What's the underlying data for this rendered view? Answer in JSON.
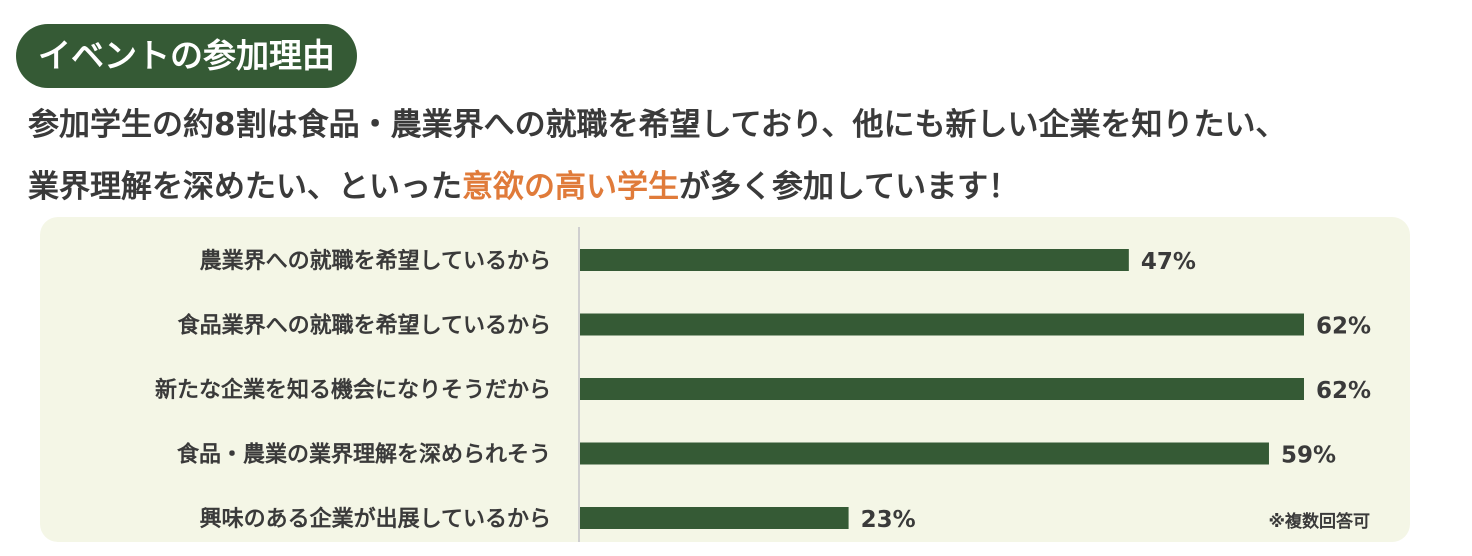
{
  "header": {
    "badge": "イベントの参加理由",
    "lead_line1": "参加学生の約8割は食品・農業界への就職を希望しており、他にも新しい企業を知りたい、",
    "lead_line2_pre": "業界理解を深めたい、といった",
    "lead_line2_highlight": "意欲の高い学生",
    "lead_line2_post": "が多く参加しています！"
  },
  "note": "※複数回答可",
  "colors": {
    "bar": "#355a35",
    "badge_bg": "#355a35",
    "highlight": "#e07b3a",
    "panel_bg": "#f4f6e6"
  },
  "chart_data": {
    "type": "bar",
    "orientation": "horizontal",
    "categories": [
      "農業界への就職を希望しているから",
      "食品業界への就職を希望しているから",
      "新たな企業を知る機会になりそうだから",
      "食品・農業の業界理解を深められそう",
      "興味のある企業が出展しているから"
    ],
    "values": [
      47,
      62,
      62,
      59,
      23
    ],
    "value_suffix": "%",
    "xlim": [
      0,
      62
    ],
    "grid": false,
    "legend": "none"
  }
}
